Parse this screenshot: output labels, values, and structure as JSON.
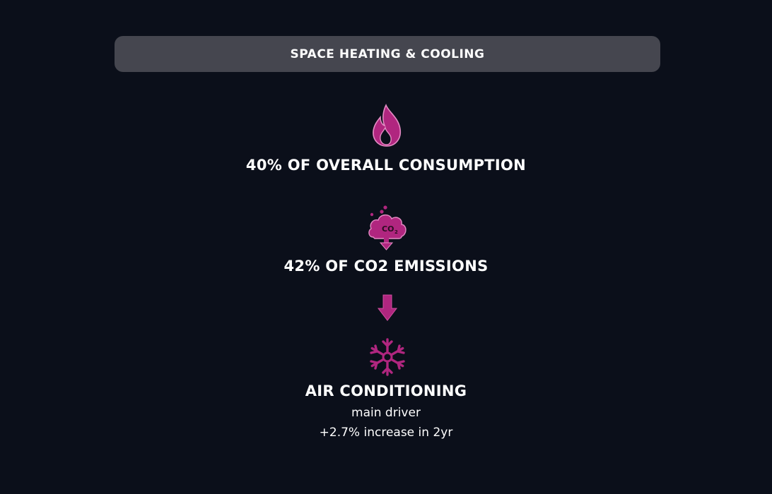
{
  "banner": {
    "title": "SPACE HEATING & COOLING"
  },
  "stats": {
    "consumption": "40% OF OVERALL CONSUMPTION",
    "emissions": "42% OF CO2 EMISSIONS",
    "driver_title": "AIR CONDITIONING",
    "driver_line1": "main driver",
    "driver_line2": "+2.7% increase in 2yr"
  },
  "icons": {
    "flame": "flame-icon",
    "co2_cloud": "co2-cloud-icon",
    "co2_label": "CO2",
    "arrow": "arrow-down-icon",
    "snowflake": "snowflake-icon"
  },
  "colors": {
    "background": "#0b0f1a",
    "banner": "#45464f",
    "accent": "#b0267f",
    "accent_light": "#d24fa0",
    "text": "#ffffff"
  }
}
